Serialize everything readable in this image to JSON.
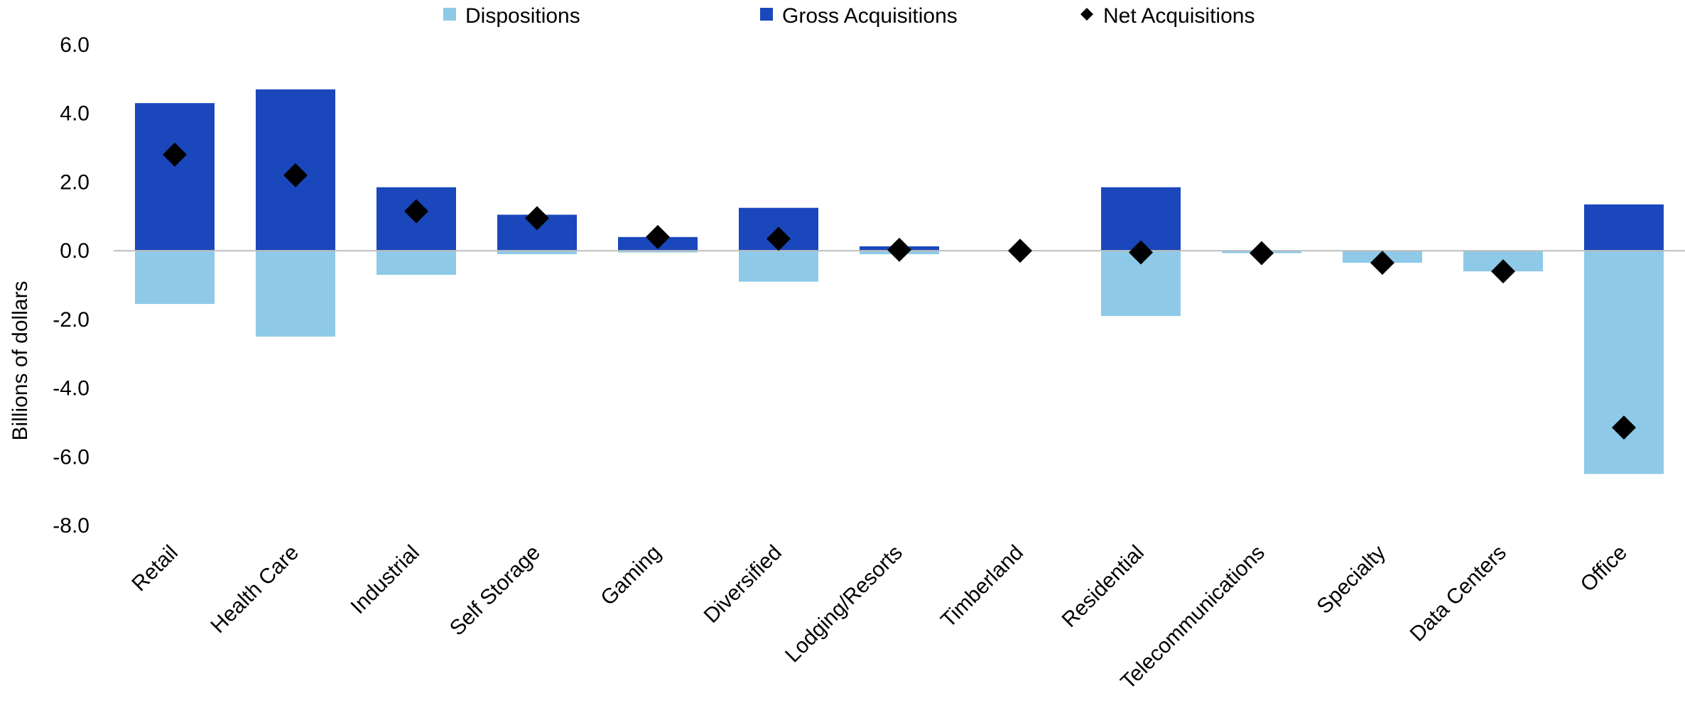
{
  "chart_data": {
    "type": "bar",
    "title": "",
    "xlabel": "",
    "ylabel": "Billions of dollars",
    "ylim": [
      -8,
      6
    ],
    "yticks": [
      "6.0",
      "4.0",
      "2.0",
      "0.0",
      "-2.0",
      "-4.0",
      "-6.0",
      "-8.0"
    ],
    "grid": false,
    "legend_position": "top",
    "categories": [
      "Retail",
      "Health Care",
      "Industrial",
      "Self Storage",
      "Gaming",
      "Diversified",
      "Lodging/Resorts",
      "Timberland",
      "Residential",
      "Telecommunications",
      "Specialty",
      "Data Centers",
      "Office"
    ],
    "series": [
      {
        "name": "Dispositions",
        "kind": "bar",
        "color": "#8ECAE8",
        "values": [
          -1.55,
          -2.5,
          -0.7,
          -0.1,
          -0.05,
          -0.9,
          -0.1,
          0.0,
          -1.9,
          -0.07,
          -0.35,
          -0.6,
          -6.5
        ]
      },
      {
        "name": "Gross Acquisitions",
        "kind": "bar",
        "color": "#1A47BB",
        "values": [
          4.3,
          4.7,
          1.85,
          1.05,
          0.4,
          1.25,
          0.13,
          0.0,
          1.85,
          0.0,
          0.0,
          0.0,
          1.35
        ]
      },
      {
        "name": "Net Acquisitions",
        "kind": "marker",
        "color": "#000000",
        "values": [
          2.8,
          2.2,
          1.15,
          0.95,
          0.4,
          0.35,
          0.03,
          0.0,
          -0.05,
          -0.07,
          -0.35,
          -0.6,
          -5.15
        ]
      }
    ]
  }
}
